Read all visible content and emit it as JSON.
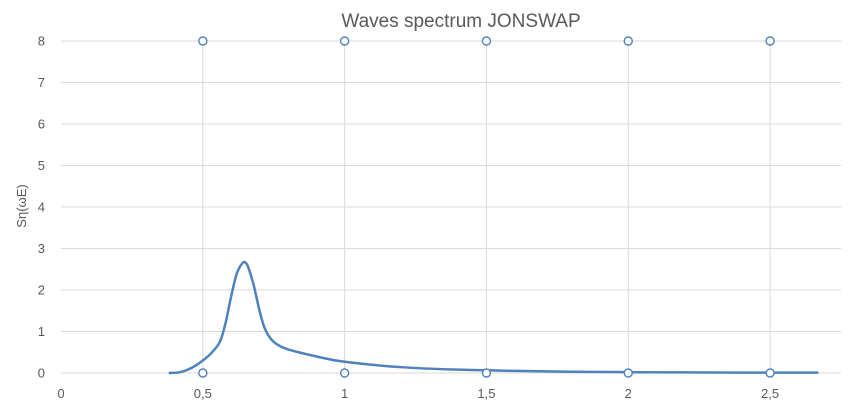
{
  "chart_data": {
    "type": "line",
    "title": "Waves spectrum JONSWAP",
    "xlabel": "",
    "ylabel": "Sη(ωE)",
    "xlim": [
      0,
      2.75
    ],
    "ylim": [
      0,
      8
    ],
    "x_ticks": [
      "0",
      "0,5",
      "1",
      "1,5",
      "2",
      "2,5"
    ],
    "y_ticks": [
      "0",
      "1",
      "2",
      "3",
      "4",
      "5",
      "6",
      "7",
      "8"
    ],
    "grid": "both",
    "legend": "none",
    "colors": {
      "series": "#4f81bd",
      "grid": "#d9d9d9",
      "text": "#595959"
    },
    "series": [
      {
        "values_x": [
          0.38,
          0.42,
          0.46,
          0.5,
          0.53,
          0.56,
          0.58,
          0.6,
          0.62,
          0.64,
          0.65,
          0.66,
          0.68,
          0.7,
          0.72,
          0.75,
          0.8,
          0.9,
          1.0,
          1.2,
          1.4,
          1.6,
          1.8,
          2.0,
          2.2,
          2.4,
          2.6,
          2.67
        ],
        "values_y": [
          0.0,
          0.02,
          0.12,
          0.3,
          0.48,
          0.75,
          1.2,
          1.85,
          2.4,
          2.65,
          2.66,
          2.55,
          2.1,
          1.5,
          1.05,
          0.75,
          0.57,
          0.4,
          0.27,
          0.14,
          0.08,
          0.05,
          0.03,
          0.02,
          0.015,
          0.01,
          0.01,
          0.01
        ]
      },
      {
        "points_x": [
          0.5,
          1.0,
          1.5,
          2.0,
          2.5,
          0.5,
          1.0,
          1.5,
          2.0,
          2.5
        ],
        "points_y": [
          8,
          8,
          8,
          8,
          8,
          0,
          0,
          0,
          0,
          0
        ]
      }
    ]
  }
}
